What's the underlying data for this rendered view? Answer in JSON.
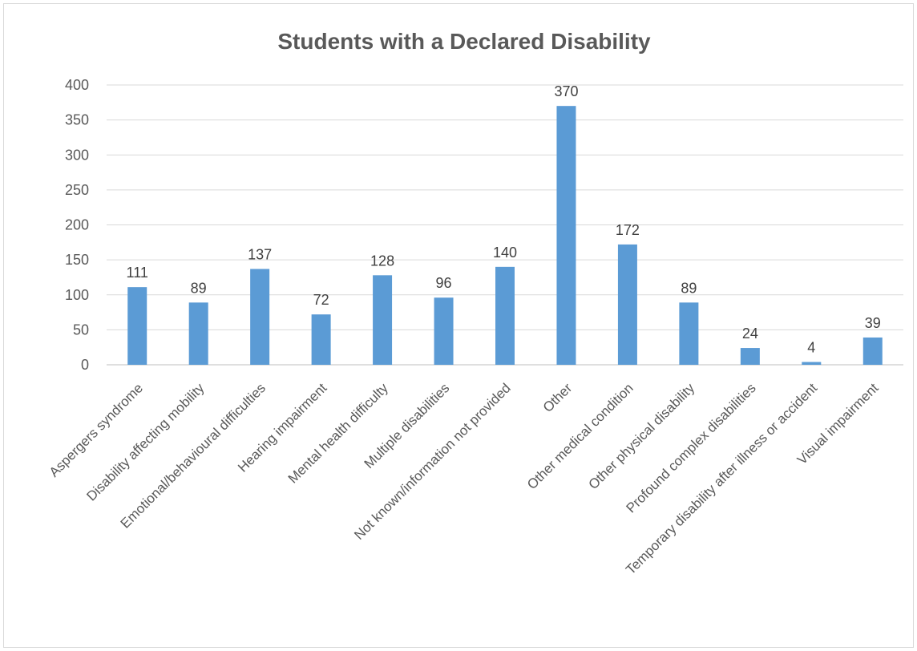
{
  "chart_data": {
    "type": "bar",
    "title": "Students with a Declared Disability",
    "categories": [
      "Aspergers syndrome",
      "Disability affecting mobility",
      "Emotional/behavioural difficulties",
      "Hearing impairment",
      "Mental health difficulty",
      "Multiple disabilities",
      "Not known/information not provided",
      "Other",
      "Other medical condition",
      "Other physical disability",
      "Profound complex disabilities",
      "Temporary disability after illness or accident",
      "Visual impairment"
    ],
    "values": [
      111,
      89,
      137,
      72,
      128,
      96,
      140,
      370,
      172,
      89,
      24,
      4,
      39
    ],
    "ylim": [
      0,
      400
    ],
    "yticks": [
      0,
      50,
      100,
      150,
      200,
      250,
      300,
      350,
      400
    ],
    "xlabel": "",
    "ylabel": "",
    "grid": true,
    "legend": "none",
    "data_labels": true,
    "colors": {
      "bar": "#5b9bd5",
      "grid": "#d9d9d9",
      "text": "#595959",
      "title": "#595959"
    }
  }
}
